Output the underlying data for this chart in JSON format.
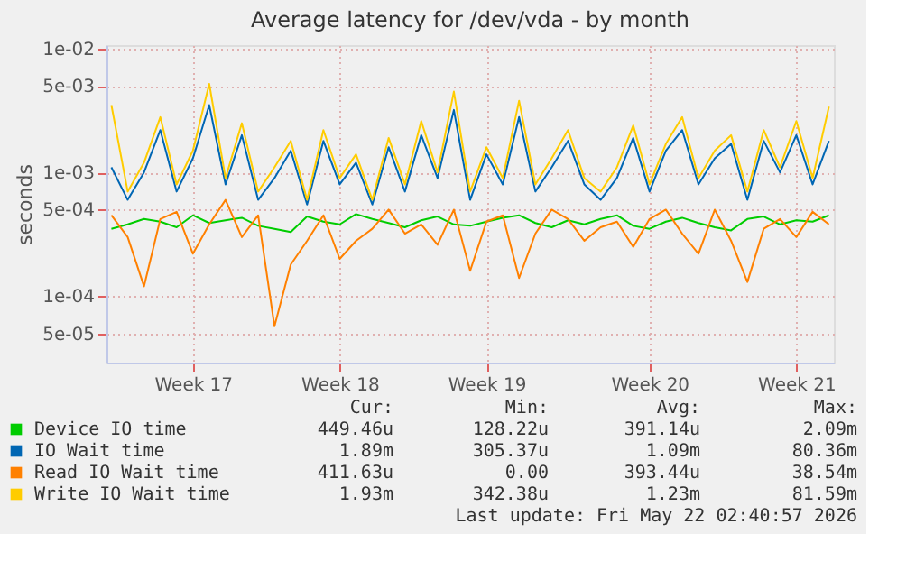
{
  "chart_data": {
    "type": "line",
    "title": "Average latency for /dev/vda - by month",
    "ylabel": "seconds",
    "log": "y",
    "grid": true,
    "legend": "bottom",
    "marker": "none",
    "line_style": "solid",
    "categories": [
      null,
      null,
      null,
      null,
      null,
      "Week 17",
      null,
      null,
      null,
      null,
      null,
      null,
      null,
      null,
      "Week 18",
      null,
      null,
      null,
      null,
      null,
      null,
      null,
      null,
      "Week 19",
      null,
      null,
      null,
      null,
      null,
      null,
      null,
      null,
      null,
      "Week 20",
      null,
      null,
      null,
      null,
      null,
      null,
      null,
      null,
      "Week 21",
      null,
      null
    ],
    "ylim": [
      2.9e-05,
      0.0107
    ],
    "yticks": [
      {
        "value": 5e-05,
        "label": "5e-05"
      },
      {
        "value": 0.0001,
        "label": "1e-04"
      },
      {
        "value": 0.0005,
        "label": "5e-04"
      },
      {
        "value": 0.001,
        "label": "1e-03"
      },
      {
        "value": 0.005,
        "label": "5e-03"
      },
      {
        "value": 0.01,
        "label": "1e-02"
      }
    ],
    "series": [
      {
        "name": "Device IO time",
        "color": "#00cc00",
        "values": [
          0.00035,
          0.00038,
          0.00042,
          0.0004,
          0.00036,
          0.00045,
          0.00039,
          0.00041,
          0.00043,
          0.00037,
          0.00035,
          0.00033,
          0.00044,
          0.0004,
          0.00038,
          0.00046,
          0.00042,
          0.00039,
          0.00036,
          0.00041,
          0.00044,
          0.00038,
          0.00037,
          0.0004,
          0.00043,
          0.00045,
          0.00039,
          0.00036,
          0.00041,
          0.00038,
          0.00042,
          0.00045,
          0.00037,
          0.00035,
          0.0004,
          0.00043,
          0.00039,
          0.00036,
          0.00034,
          0.00042,
          0.00044,
          0.00038,
          0.00041,
          0.0004,
          0.00045
        ]
      },
      {
        "name": "IO Wait time",
        "color": "#0066b3",
        "values": [
          0.0011,
          0.0006,
          0.001,
          0.0022,
          0.0007,
          0.0013,
          0.0035,
          0.0008,
          0.002,
          0.0006,
          0.0009,
          0.0015,
          0.00055,
          0.0018,
          0.0008,
          0.0012,
          0.00055,
          0.0016,
          0.0007,
          0.002,
          0.0009,
          0.0032,
          0.0006,
          0.0014,
          0.0008,
          0.0028,
          0.0007,
          0.0011,
          0.0018,
          0.0008,
          0.0006,
          0.0009,
          0.0019,
          0.0007,
          0.0015,
          0.0022,
          0.0008,
          0.0013,
          0.0017,
          0.0006,
          0.0018,
          0.001,
          0.002,
          0.0008,
          0.0018
        ]
      },
      {
        "name": "Read IO Wait time",
        "color": "#ff8000",
        "values": [
          0.00045,
          0.0003,
          0.00012,
          0.00042,
          0.00048,
          0.00022,
          0.00038,
          0.0006,
          0.0003,
          0.00045,
          5.7e-05,
          0.00018,
          0.00028,
          0.00045,
          0.0002,
          0.00028,
          0.00035,
          0.0005,
          0.00032,
          0.00038,
          0.00026,
          0.0005,
          0.00016,
          0.0004,
          0.00045,
          0.00014,
          0.00032,
          0.0005,
          0.00042,
          0.00028,
          0.00036,
          0.0004,
          0.00025,
          0.00042,
          0.0005,
          0.00032,
          0.00022,
          0.0005,
          0.00028,
          0.00013,
          0.00035,
          0.00042,
          0.0003,
          0.00048,
          0.00038
        ]
      },
      {
        "name": "Write IO Wait time",
        "color": "#ffcc00",
        "values": [
          0.0035,
          0.0007,
          0.0012,
          0.0028,
          0.0008,
          0.0015,
          0.0052,
          0.0009,
          0.0025,
          0.0007,
          0.0011,
          0.0018,
          0.0006,
          0.0022,
          0.0009,
          0.0014,
          0.0006,
          0.0019,
          0.0008,
          0.0026,
          0.001,
          0.0045,
          0.0007,
          0.0016,
          0.0009,
          0.0038,
          0.0008,
          0.0013,
          0.0022,
          0.0009,
          0.0007,
          0.0011,
          0.0024,
          0.0008,
          0.0017,
          0.0028,
          0.0009,
          0.0015,
          0.002,
          0.0007,
          0.0022,
          0.0011,
          0.0026,
          0.0009,
          0.0034
        ]
      }
    ],
    "annotations": [
      "Cur:",
      "Min:",
      "Avg:",
      "Max:",
      "449.46u",
      "128.22u",
      "391.14u",
      "2.09m",
      "1.89m",
      "305.37u",
      "1.09m",
      "80.36m",
      "411.63u",
      "0.00",
      "393.44u",
      "38.54m",
      "1.93m",
      "342.38u",
      "1.23m",
      "81.59m",
      "Last update: Fri May 22 02:40:57 2026"
    ]
  }
}
